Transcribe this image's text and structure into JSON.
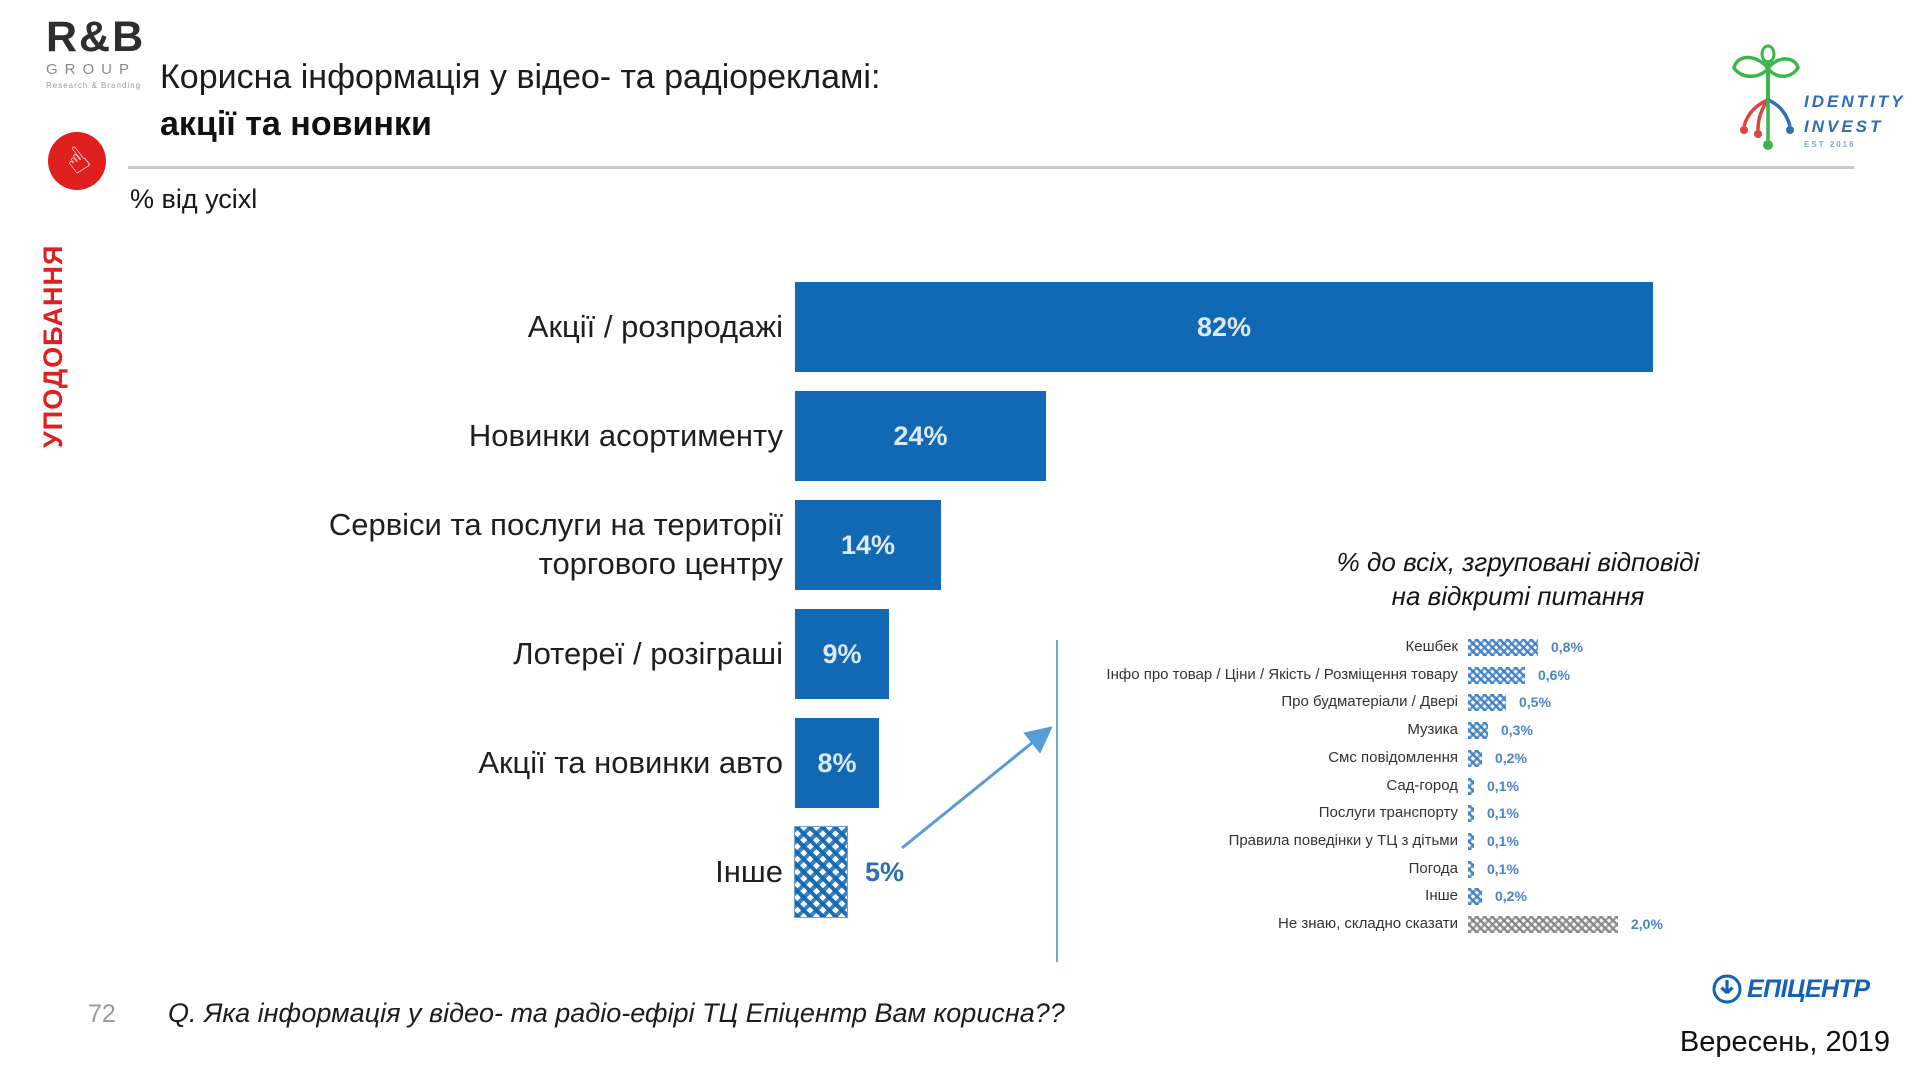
{
  "header": {
    "title_line1": "Корисна інформація у відео- та радіорекламі:",
    "title_line2": "акції та новинки",
    "subtitle": "% від усіхl"
  },
  "sidebar": {
    "label": "УПОДОБАННЯ",
    "pointer_icon": "☝"
  },
  "logos": {
    "rb": {
      "name": "R&B",
      "group": "GROUP",
      "tagline": "Research & Branding"
    },
    "identity": {
      "line1": "IDENTITY",
      "line2": "INVEST",
      "line3": "EST 2016"
    },
    "epicentr": {
      "text": "ЕПІЦЕНТР"
    }
  },
  "footer": {
    "slide_number": "72",
    "question": "Q. Яка інформація у відео- та радіо-ефірі ТЦ Епіцентр Вам корисна??",
    "date": "Вересень, 2019"
  },
  "colors": {
    "bar_blue": "#1168b3",
    "hatch_blue": "#4082c8",
    "hatch_gray": "#878787",
    "value_blue": "#4a84c8",
    "accent_red": "#e01f1f",
    "epicentr_blue": "#1461b8",
    "arrow_blue": "#5b9bd5"
  },
  "chart_data": [
    {
      "type": "bar",
      "orientation": "horizontal",
      "title": "Корисна інформація у відео- та радіорекламі: акції та новинки",
      "xlabel": "",
      "ylabel": "",
      "unit": "% від усіх",
      "xlim": [
        0,
        100
      ],
      "grid": false,
      "categories": [
        "Акції / розпродажі",
        "Новинки асортименту",
        "Сервіси та послуги на території торгового центру",
        "Лотереї / розіграші",
        "Акції та новинки авто",
        "Інше"
      ],
      "values": [
        82,
        24,
        14,
        9,
        8,
        5
      ],
      "value_labels": [
        "82%",
        "24%",
        "14%",
        "9%",
        "8%",
        "5%"
      ],
      "hatched_categories": [
        "Інше"
      ]
    },
    {
      "type": "bar",
      "orientation": "horizontal",
      "title": "% до всіх, згруповані відповіді на відкриті питання",
      "title_lines": [
        "% до всіх, згруповані відповіді",
        "на відкриті питання"
      ],
      "xlabel": "",
      "ylabel": "",
      "unit": "%",
      "xlim": [
        0,
        2.5
      ],
      "grid": false,
      "categories": [
        "Кешбек",
        "Інфо про товар / Ціни / Якість / Розміщення товару",
        "Про будматеріали / Двері",
        "Музика",
        "Смс повідомлення",
        "Сад-город",
        "Послуги транспорту",
        "Правила поведінки у ТЦ з дітьми",
        "Погода",
        "Інше",
        "Не знаю, складно сказати"
      ],
      "values": [
        0.8,
        0.6,
        0.5,
        0.3,
        0.2,
        0.1,
        0.1,
        0.1,
        0.1,
        0.2,
        2.0
      ],
      "value_labels": [
        "0,8%",
        "0,6%",
        "0,5%",
        "0,3%",
        "0,2%",
        "0,1%",
        "0,1%",
        "0,1%",
        "0,1%",
        "0,2%",
        "2,0%"
      ],
      "gray_categories": [
        "Не знаю, складно сказати"
      ]
    }
  ]
}
